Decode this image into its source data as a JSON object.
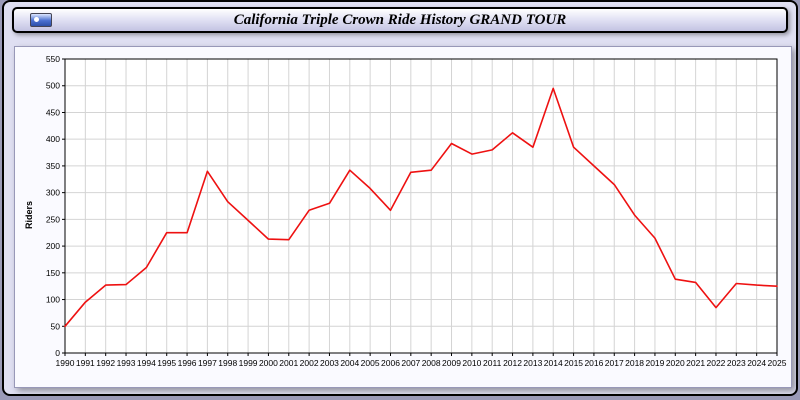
{
  "header": {
    "title": "California Triple Crown Ride History GRAND TOUR",
    "logo_icon": "california-flag-logo"
  },
  "colors": {
    "line": "#ee1111",
    "grid": "#d4d4d4",
    "axis": "#000000",
    "plot_background": "#ffffff",
    "panel_background": "#fafaff",
    "page_background": "#dfdff2"
  },
  "chart_data": {
    "type": "line",
    "title": "California Triple Crown Ride History GRAND TOUR",
    "xlabel": "",
    "ylabel": "Riders",
    "ylim": [
      0,
      550
    ],
    "ytick_step": 50,
    "grid": true,
    "legend_position": "none",
    "series_name": "Riders",
    "x": [
      1990,
      1991,
      1992,
      1993,
      1994,
      1995,
      1996,
      1997,
      1998,
      1999,
      2000,
      2001,
      2002,
      2003,
      2004,
      2005,
      2006,
      2007,
      2008,
      2009,
      2010,
      2011,
      2012,
      2013,
      2014,
      2015,
      2016,
      2017,
      2018,
      2019,
      2020,
      2021,
      2022,
      2023,
      2024,
      2025
    ],
    "values": [
      50,
      95,
      127,
      128,
      160,
      225,
      225,
      340,
      283,
      248,
      213,
      212,
      267,
      280,
      342,
      308,
      267,
      338,
      342,
      392,
      372,
      380,
      412,
      385,
      495,
      385,
      350,
      315,
      258,
      215,
      138,
      132,
      85,
      130,
      127,
      125
    ]
  }
}
